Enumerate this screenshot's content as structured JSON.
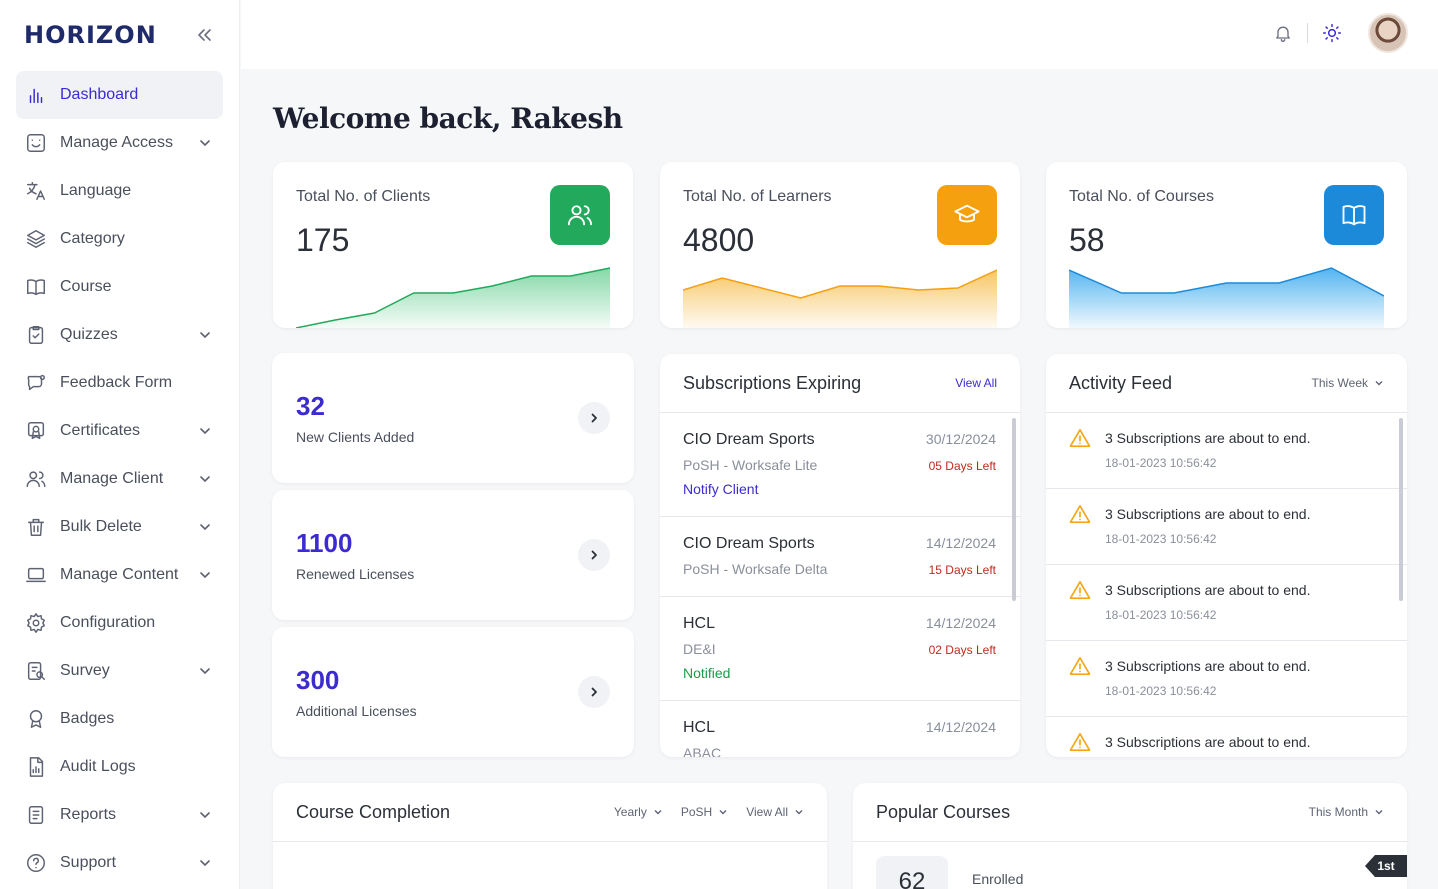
{
  "app": {
    "logo": "HORIZON"
  },
  "sidebar": {
    "items": [
      {
        "label": "Dashboard",
        "icon": "bar-chart-icon",
        "active": true,
        "expandable": false
      },
      {
        "label": "Manage Access",
        "icon": "user-badge-icon",
        "expandable": true
      },
      {
        "label": "Language",
        "icon": "translate-icon",
        "expandable": false
      },
      {
        "label": "Category",
        "icon": "layers-icon",
        "expandable": false
      },
      {
        "label": "Course",
        "icon": "book-icon",
        "expandable": false
      },
      {
        "label": "Quizzes",
        "icon": "clipboard-check-icon",
        "expandable": true
      },
      {
        "label": "Feedback Form",
        "icon": "chat-icon",
        "expandable": false
      },
      {
        "label": "Certificates",
        "icon": "certificate-icon",
        "expandable": true
      },
      {
        "label": "Manage Client",
        "icon": "users-icon",
        "expandable": true
      },
      {
        "label": "Bulk Delete",
        "icon": "trash-icon",
        "expandable": true
      },
      {
        "label": "Manage Content",
        "icon": "laptop-icon",
        "expandable": true
      },
      {
        "label": "Configuration",
        "icon": "gear-icon",
        "expandable": false
      },
      {
        "label": "Survey",
        "icon": "survey-icon",
        "expandable": true
      },
      {
        "label": "Badges",
        "icon": "badge-icon",
        "expandable": false
      },
      {
        "label": "Audit Logs",
        "icon": "file-chart-icon",
        "expandable": false
      },
      {
        "label": "Reports",
        "icon": "report-icon",
        "expandable": true
      },
      {
        "label": "Support",
        "icon": "help-icon",
        "expandable": true
      }
    ]
  },
  "header": {
    "welcome": "Welcome back, Rakesh"
  },
  "stats": [
    {
      "title": "Total No. of Clients",
      "value": "175",
      "color": "#22a95b",
      "fill": "#7fd6a3",
      "icon": "users-icon",
      "trend": [
        0,
        8,
        15,
        35,
        35,
        42,
        52,
        52,
        60
      ]
    },
    {
      "title": "Total No. of Learners",
      "value": "4800",
      "color": "#f5a00e",
      "fill": "#f7c45e",
      "icon": "graduation-cap-icon",
      "trend": [
        38,
        50,
        40,
        30,
        42,
        42,
        38,
        40,
        58
      ]
    },
    {
      "title": "Total No. of Courses",
      "value": "58",
      "color": "#1d8ad9",
      "fill": "#4ab0ef",
      "icon": "book-open-icon",
      "trend": [
        58,
        35,
        35,
        45,
        45,
        60,
        32
      ]
    }
  ],
  "mini_cards": [
    {
      "value": "32",
      "label": "New Clients Added"
    },
    {
      "value": "1100",
      "label": "Renewed Licenses"
    },
    {
      "value": "300",
      "label": "Additional Licenses"
    }
  ],
  "subscriptions": {
    "title": "Subscriptions Expiring",
    "view_all": "View All",
    "items": [
      {
        "name": "CIO Dream Sports",
        "plan": "PoSH - Worksafe Lite",
        "date": "30/12/2024",
        "days": "05 Days Left",
        "action": "Notify Client",
        "action_color": "#3b2bd1"
      },
      {
        "name": "CIO Dream Sports",
        "plan": "PoSH - Worksafe Delta",
        "date": "14/12/2024",
        "days": "15 Days Left",
        "action": "",
        "action_color": ""
      },
      {
        "name": "HCL",
        "plan": "DE&I",
        "date": "14/12/2024",
        "days": "02 Days Left",
        "action": "Notified",
        "action_color": "#1a9c4a"
      },
      {
        "name": "HCL",
        "plan": "ABAC",
        "date": "14/12/2024",
        "days": "",
        "action": "",
        "action_color": ""
      }
    ]
  },
  "activity": {
    "title": "Activity Feed",
    "filter": "This Week",
    "items": [
      {
        "text": "3 Subscriptions are about to end.",
        "time": "18-01-2023  10:56:42"
      },
      {
        "text": "3 Subscriptions are about to end.",
        "time": "18-01-2023  10:56:42"
      },
      {
        "text": "3 Subscriptions are about to end.",
        "time": "18-01-2023  10:56:42"
      },
      {
        "text": "3 Subscriptions are about to end.",
        "time": "18-01-2023  10:56:42"
      },
      {
        "text": "3 Subscriptions are about to end.",
        "time": ""
      }
    ]
  },
  "course_completion": {
    "title": "Course Completion",
    "filters": [
      "Yearly",
      "PoSH",
      "View All"
    ]
  },
  "popular_courses": {
    "title": "Popular Courses",
    "filter": "This Month",
    "enrolled_value": "62",
    "enrolled_label": "Enrolled",
    "rank": "1st"
  }
}
